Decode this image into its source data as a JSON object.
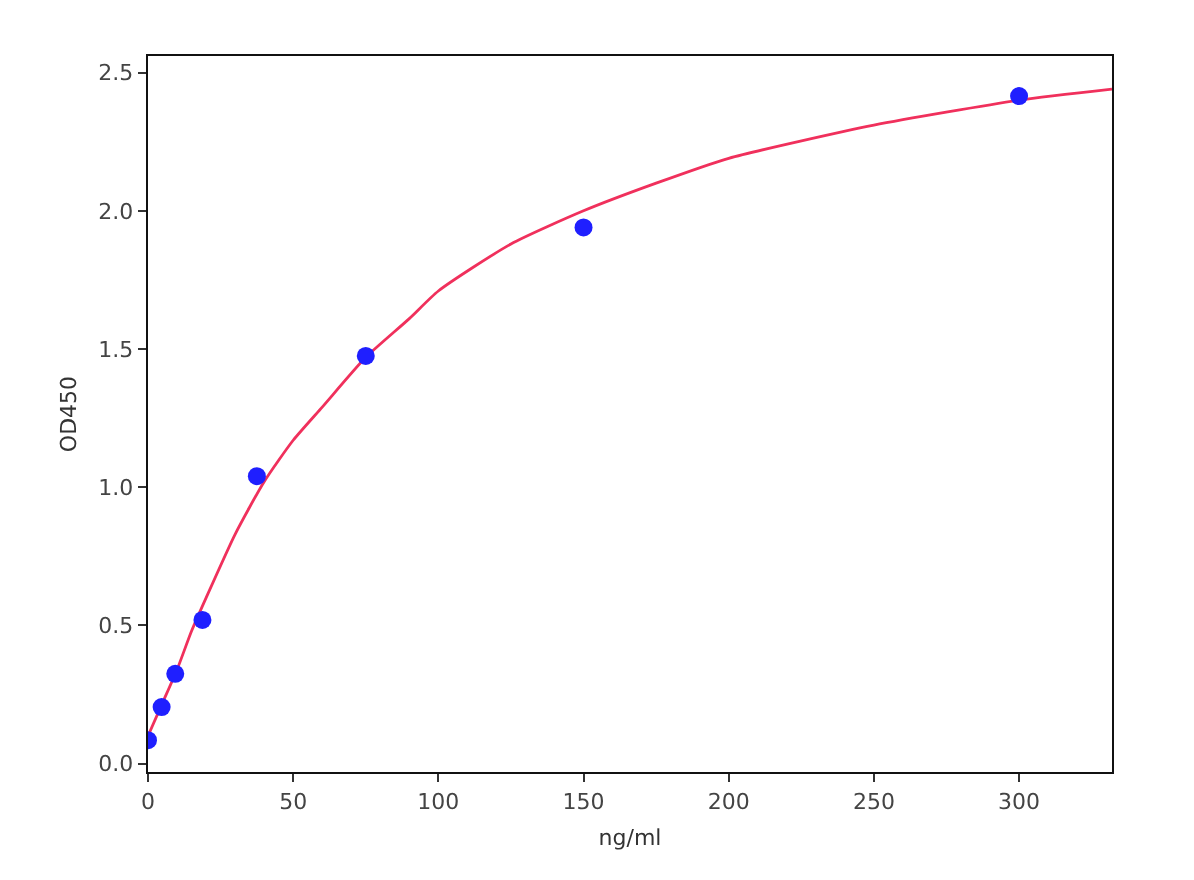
{
  "chart_data": {
    "type": "scatter",
    "xlabel": "ng/ml",
    "ylabel": "OD450",
    "xlim": [
      0,
      332
    ],
    "xticks": [
      0,
      50,
      100,
      150,
      200,
      250,
      300
    ],
    "ylim": [
      -0.03,
      2.56
    ],
    "yticks": [
      {
        "value": 0,
        "label": "0.0"
      },
      {
        "value": 0.5,
        "label": "0.5"
      },
      {
        "value": 1,
        "label": "1.0"
      },
      {
        "value": 1.5,
        "label": "1.5"
      },
      {
        "value": 2,
        "label": "2.0"
      },
      {
        "value": 2.5,
        "label": "2.5"
      }
    ],
    "line_style": "solid",
    "series": [
      {
        "type": "line",
        "color": "#f0305c",
        "x": [
          0,
          5,
          10,
          15,
          20,
          30,
          40,
          50,
          60,
          75,
          90,
          100,
          125,
          150,
          175,
          200,
          250,
          300,
          332
        ],
        "values": [
          0.1,
          0.22,
          0.34,
          0.48,
          0.6,
          0.83,
          1.02,
          1.17,
          1.29,
          1.47,
          1.61,
          1.71,
          1.88,
          2.0,
          2.1,
          2.19,
          2.31,
          2.4,
          2.44
        ]
      },
      {
        "color": "#1f1fff",
        "marker": "circle",
        "x": [
          0,
          4.69,
          9.38,
          18.75,
          37.5,
          75,
          150,
          300
        ],
        "values": [
          0.085,
          0.205,
          0.325,
          0.52,
          1.04,
          1.475,
          1.94,
          2.415
        ]
      }
    ]
  }
}
